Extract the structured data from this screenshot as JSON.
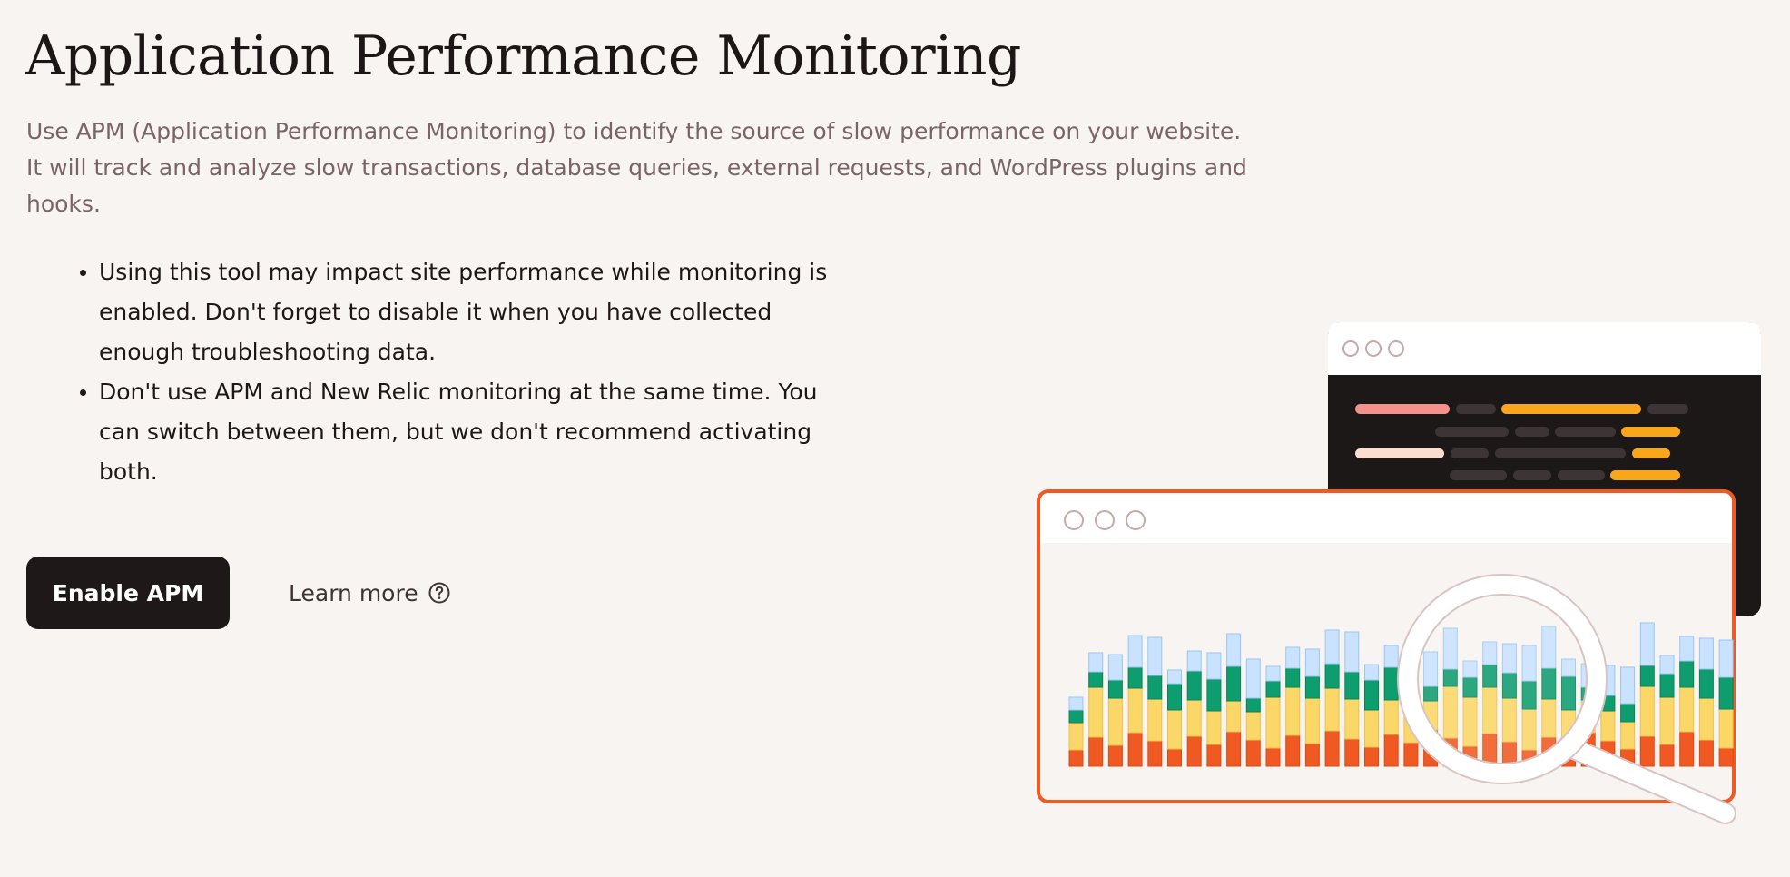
{
  "page": {
    "title": "Application Performance Monitoring",
    "description": "Use APM (Application Performance Monitoring) to identify the source of slow performance on your website. It will track and analyze slow transactions, database queries, external requests, and WordPress plugins and hooks.",
    "bullets": [
      "Using this tool may impact site performance while monitoring is enabled. Don't forget to disable it when you have collected enough troubleshooting data.",
      "Don't use APM and New Relic monitoring at the same time. You can switch between them, but we don't recommend activating both."
    ]
  },
  "actions": {
    "enable_label": "Enable APM",
    "learn_more_label": "Learn more",
    "learn_more_icon": "help-circle-icon"
  },
  "illustration": {
    "back_window_icon": "code-window-icon",
    "front_window_icon": "chart-window-icon",
    "magnifier_icon": "magnifying-glass-icon",
    "colors": {
      "accent": "#f05a22",
      "ok": "#0e9d6e",
      "warn": "#fad766",
      "info": "#c9e2ff",
      "code_bg": "#1d1818",
      "code_orange": "#f9a61a",
      "code_salmon": "#f3918a"
    }
  }
}
